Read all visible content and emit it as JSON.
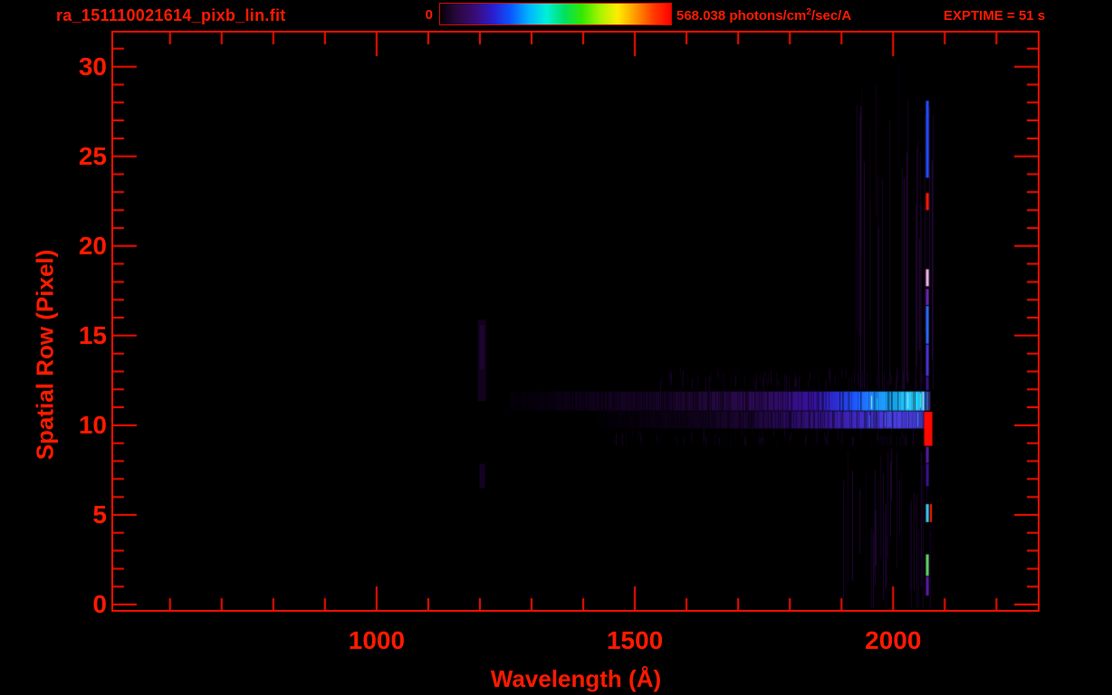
{
  "window": {
    "background": "#000000",
    "accent_red": "#ff1a00"
  },
  "header": {
    "title": "ra_151110021614_pixb_lin.fit",
    "exptime_label": "EXPTIME = 51 s",
    "colorbar": {
      "min_label": "0",
      "max_value": "568.038",
      "max_units_prefix": " photons/cm",
      "max_units_sup": "2",
      "max_units_suffix": "/sec/A",
      "gradient": [
        "#070009",
        "#2b0840",
        "#3a0c78",
        "#2a1ed0",
        "#0a58ff",
        "#00b4ff",
        "#00f0d8",
        "#00e060",
        "#35e800",
        "#a8f400",
        "#ffec00",
        "#ff9800",
        "#ff3c00",
        "#ff0000"
      ]
    }
  },
  "chart_data": {
    "type": "heatmap",
    "title": "ra_151110021614_pixb_lin.fit",
    "xlabel": "Wavelength (Å)",
    "ylabel": "Spatial Row (Pixel)",
    "xlim": [
      490,
      2280
    ],
    "ylim": [
      -0.3,
      31.9
    ],
    "x_major_ticks": [
      1000,
      1500,
      2000
    ],
    "x_minor_step": 100,
    "y_major_ticks": [
      0,
      5,
      10,
      15,
      20,
      25,
      30
    ],
    "y_minor_step": 1,
    "colorbar": {
      "min": 0,
      "max": 568.038,
      "units": "photons/cm^2/sec/A",
      "colormap": "rainbow"
    },
    "exposure_time_s": 51,
    "grid": false,
    "features": [
      {
        "kind": "stripes",
        "name": "faint-column-texture-upper",
        "wavelengths": [
          1925,
          2080
        ],
        "rows": [
          12.0,
          30.3
        ],
        "color": "#2a0640",
        "density": 0.42,
        "alpha": [
          0.2,
          0.95
        ]
      },
      {
        "kind": "stripes",
        "name": "faint-column-texture-lower",
        "wavelengths": [
          1890,
          2080
        ],
        "rows": [
          -0.2,
          8.85
        ],
        "color": "#250540",
        "density": 0.38,
        "alpha": [
          0.2,
          0.95
        ]
      },
      {
        "kind": "stripes",
        "name": "faint-wing-below-trace",
        "wavelengths": [
          1430,
          2058
        ],
        "rows": [
          8.85,
          9.85
        ],
        "color": "#1e0434",
        "density": 0.3,
        "alpha": [
          0.15,
          0.8
        ]
      },
      {
        "kind": "stripes",
        "name": "faint-wing-above-trace",
        "wavelengths": [
          1540,
          2058
        ],
        "rows": [
          11.9,
          13.2
        ],
        "color": "#1e0434",
        "density": 0.3,
        "alpha": [
          0.15,
          0.8
        ]
      },
      {
        "kind": "rect",
        "name": "lyman-alpha-glow-outer",
        "wavelengths": [
          1196,
          1212
        ],
        "rows": [
          11.35,
          15.9
        ],
        "color": "#12021d"
      },
      {
        "kind": "rect",
        "name": "lyman-alpha-glow-inner",
        "wavelengths": [
          1199,
          1209
        ],
        "rows": [
          13.1,
          15.6
        ],
        "color": "#1d052f"
      },
      {
        "kind": "rect",
        "name": "lyman-alpha-glow-low",
        "wavelengths": [
          1199,
          1210
        ],
        "rows": [
          6.5,
          7.85
        ],
        "color": "#140224"
      },
      {
        "kind": "band",
        "name": "spectral-trace-row11",
        "rows": [
          10.82,
          11.88
        ],
        "stops": [
          [
            1255,
            "#040008"
          ],
          [
            1450,
            "#120320"
          ],
          [
            1620,
            "#200735"
          ],
          [
            1760,
            "#2e0b5c"
          ],
          [
            1845,
            "#3912a2"
          ],
          [
            1890,
            "#2c2ed2"
          ],
          [
            1925,
            "#1e57ff"
          ],
          [
            1962,
            "#2088ff"
          ],
          [
            2000,
            "#18b2ff"
          ],
          [
            2042,
            "#2fd2ff"
          ],
          [
            2058,
            "#28a2ff"
          ],
          [
            2072,
            "#41207a"
          ]
        ],
        "texture_dark": 0.42,
        "flecks": {
          "wavelengths": [
            1898,
            2062
          ],
          "colors": [
            "#8dffd8",
            "#46ff72",
            "#d8fbff",
            "#00e8ff"
          ],
          "chance": 0.055
        }
      },
      {
        "kind": "band",
        "name": "spectral-trace-row10",
        "rows": [
          9.82,
          10.78
        ],
        "stops": [
          [
            1430,
            "#030006"
          ],
          [
            1600,
            "#0f031a"
          ],
          [
            1720,
            "#1c0634"
          ],
          [
            1805,
            "#2a0b60"
          ],
          [
            1872,
            "#381694"
          ],
          [
            1925,
            "#3e27be"
          ],
          [
            1972,
            "#4635d4"
          ],
          [
            2022,
            "#4a41e2"
          ],
          [
            2060,
            "#3a2eac"
          ]
        ],
        "texture_dark": 0.46,
        "flecks": {
          "wavelengths": [
            1930,
            2056
          ],
          "colors": [
            "#5a6cff",
            "#2e9aff",
            "#7e8cff"
          ],
          "chance": 0.06
        }
      },
      {
        "kind": "rect",
        "name": "saturated-line-core",
        "wavelengths": [
          2060,
          2076
        ],
        "rows": [
          8.85,
          10.75
        ],
        "color": "#ff0800"
      },
      {
        "kind": "vline",
        "name": "emission-line-2064",
        "wavelengths": [
          2063.5,
          2069
        ],
        "segments": [
          {
            "rows": [
              23.8,
              28.1
            ],
            "color": "#2050ff"
          },
          {
            "rows": [
              22.0,
              22.95
            ],
            "color": "#ff1a00"
          },
          {
            "rows": [
              17.75,
              18.7
            ],
            "color": "#efb8e6"
          },
          {
            "rows": [
              16.7,
              17.6
            ],
            "color": "#6a28b4"
          },
          {
            "rows": [
              14.55,
              16.65
            ],
            "color": "#2e6afe"
          },
          {
            "rows": [
              12.75,
              14.5
            ],
            "color": "#4a35d8"
          },
          {
            "rows": [
              11.95,
              12.7
            ],
            "color": "#35128a"
          },
          {
            "rows": [
              7.9,
              8.8
            ],
            "color": "#5a1aa2"
          },
          {
            "rows": [
              6.6,
              7.85
            ],
            "color": "#3c1090"
          },
          {
            "rows": [
              4.6,
              5.6
            ],
            "color": "#3ec8f2"
          },
          {
            "rows": [
              1.6,
              2.8
            ],
            "color": "#62d56e"
          },
          {
            "rows": [
              0.5,
              1.55
            ],
            "color": "#5a1ca6"
          }
        ]
      },
      {
        "kind": "vline",
        "name": "emission-line-red-companion",
        "wavelengths": [
          2071.5,
          2074
        ],
        "segments": [
          {
            "rows": [
              4.6,
              5.6
            ],
            "color": "#ff2000"
          }
        ]
      }
    ]
  }
}
